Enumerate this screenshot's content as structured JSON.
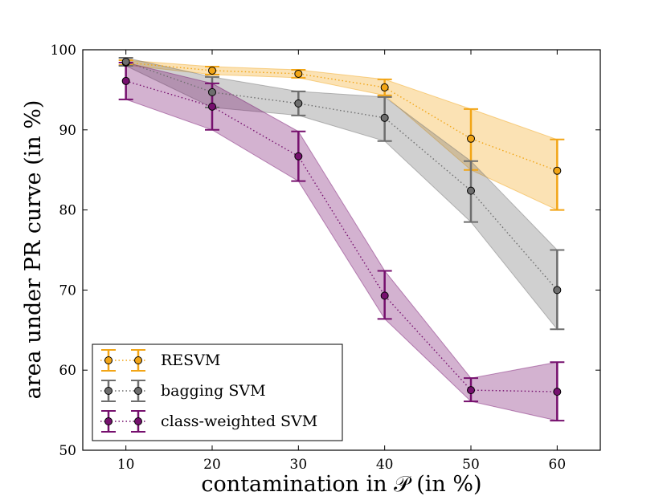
{
  "chart_data": {
    "type": "line",
    "title": "",
    "xlabel": "contamination in 𝒫 (in %)",
    "ylabel": "area under PR curve (in %)",
    "x": [
      10,
      20,
      30,
      40,
      50,
      60
    ],
    "xlim": [
      5,
      65
    ],
    "ylim": [
      50,
      100
    ],
    "xticks": [
      "10",
      "20",
      "30",
      "40",
      "50",
      "60"
    ],
    "yticks": [
      "50",
      "60",
      "70",
      "80",
      "90",
      "100"
    ],
    "legend_position": "lower-left",
    "series": [
      {
        "name": "RESVM",
        "color": "#f2a516",
        "values": [
          98.4,
          97.4,
          97.0,
          95.3,
          88.9,
          84.9
        ],
        "lower": [
          98.1,
          96.9,
          96.5,
          94.3,
          85.0,
          80.0
        ],
        "upper": [
          98.7,
          97.9,
          97.5,
          96.3,
          92.6,
          88.8
        ]
      },
      {
        "name": "bagging SVM",
        "color": "#6e6e6e",
        "values": [
          98.5,
          94.7,
          93.3,
          91.5,
          82.4,
          70.0
        ],
        "lower": [
          98.0,
          92.8,
          91.8,
          88.6,
          78.5,
          65.1
        ],
        "upper": [
          99.0,
          96.6,
          94.8,
          94.1,
          86.1,
          75.0
        ]
      },
      {
        "name": "class-weighted SVM",
        "color": "#76106e",
        "values": [
          96.1,
          92.9,
          86.7,
          69.3,
          57.5,
          57.3
        ],
        "lower": [
          93.8,
          90.0,
          83.6,
          66.4,
          56.1,
          53.7
        ],
        "upper": [
          98.4,
          95.8,
          89.8,
          72.4,
          59.0,
          61.0
        ]
      }
    ]
  }
}
